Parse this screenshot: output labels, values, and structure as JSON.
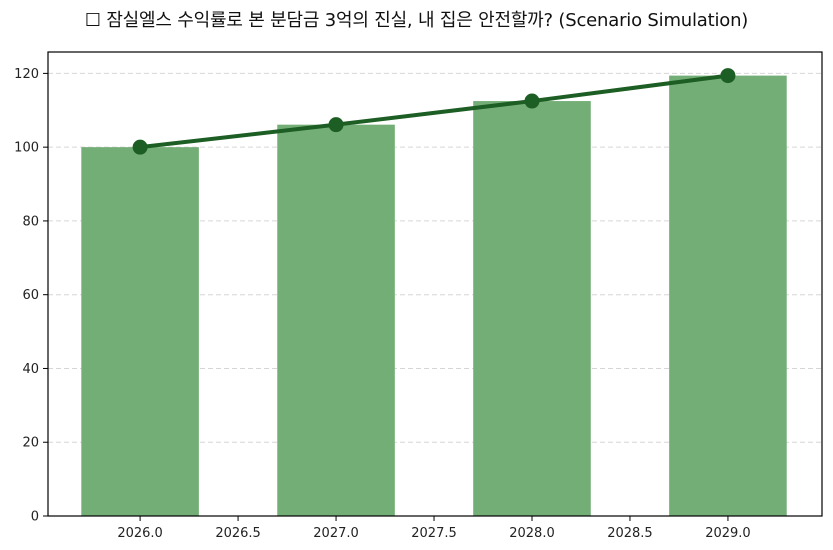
{
  "chart_data": {
    "type": "bar",
    "title": "☐ 잠실엘스 수익률로 본 분담금 3억의 진실, 내 집은 안전할까? (Scenario Simulation)",
    "xlabel": "",
    "ylabel": "",
    "categories": [
      2026,
      2027,
      2028,
      2029
    ],
    "series": [
      {
        "name": "bar",
        "type": "bar",
        "color": "#74ae77",
        "values": [
          100,
          106.1,
          112.5,
          119.4
        ]
      },
      {
        "name": "line",
        "type": "line",
        "color": "#1d5e24",
        "marker": "circle",
        "values": [
          100,
          106.1,
          112.5,
          119.4
        ]
      }
    ],
    "xlim": [
      2025.53,
      2029.48
    ],
    "ylim": [
      0,
      125.8
    ],
    "xticks": [
      "2026.0",
      "2026.5",
      "2027.0",
      "2027.5",
      "2028.0",
      "2028.5",
      "2029.0"
    ],
    "yticks": [
      "0",
      "20",
      "40",
      "60",
      "80",
      "100",
      "120"
    ],
    "grid": {
      "y": true,
      "x": false,
      "style": "dashed"
    },
    "legend": null
  }
}
